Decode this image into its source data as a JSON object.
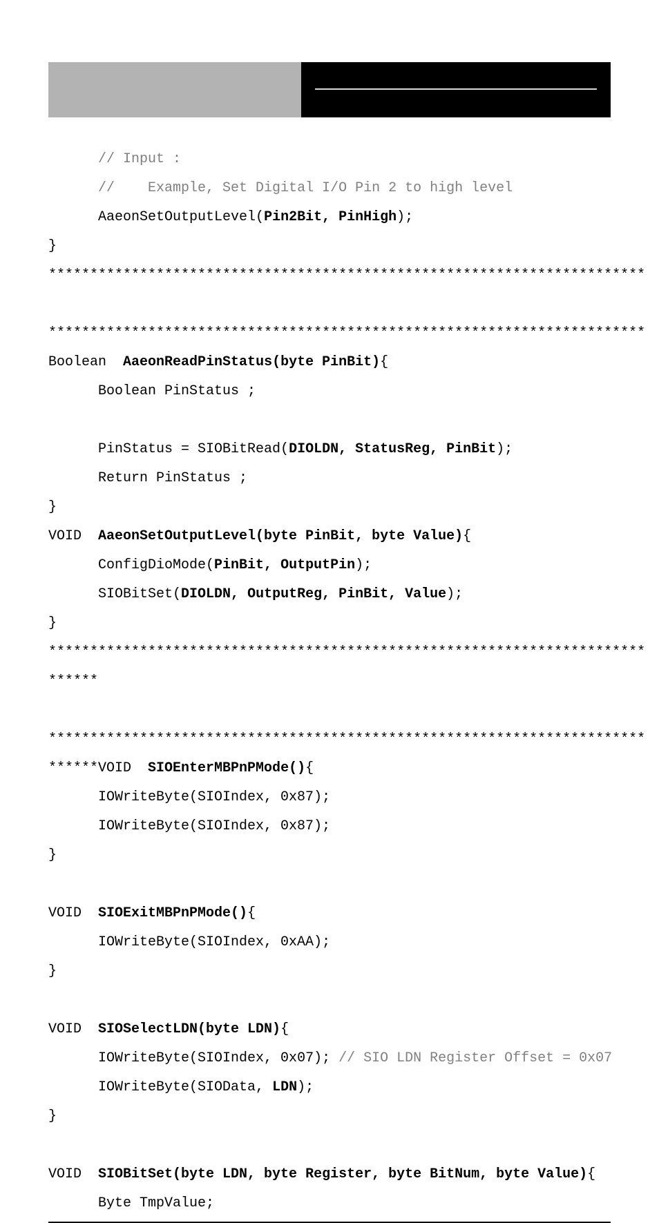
{
  "code": {
    "line1_indent": "      ",
    "line1_comment": "// Input :",
    "line2_indent": "      ",
    "line2_comment": "//    Example, Set Digital I/O Pin 2 to high level",
    "line3_indent": "      ",
    "line3_text": "AaeonSetOutputLevel(",
    "line3_bold": "Pin2Bit, PinHigh",
    "line3_end": ");",
    "line4": "}",
    "asterisks72": "************************************************************************",
    "line7_text": "Boolean  ",
    "line7_bold": "AaeonReadPinStatus(byte PinBit)",
    "line7_end": "{",
    "line8": "      Boolean PinStatus ;",
    "line9_indent": "      ",
    "line9_text": "PinStatus = SIOBitRead(",
    "line9_bold": "DIOLDN, StatusReg, PinBit",
    "line9_end": ");",
    "line10": "      Return PinStatus ;",
    "line11": "}",
    "line12_text": "VOID  ",
    "line12_bold": "AaeonSetOutputLevel(byte PinBit, byte Value)",
    "line12_end": "{",
    "line13_indent": "      ",
    "line13_text": "ConfigDioMode(",
    "line13_bold": "PinBit, OutputPin",
    "line13_end": ");",
    "line14_indent": "      ",
    "line14_text": "SIOBitSet(",
    "line14_bold": "DIOLDN, OutputReg, PinBit, Value",
    "line14_end": ");",
    "line15": "}",
    "asterisks6": "******",
    "line18_prefix": "******VOID  ",
    "line18_bold": "SIOEnterMBPnPMode()",
    "line18_end": "{",
    "line19": "      IOWriteByte(SIOIndex, 0x87);",
    "line20": "      IOWriteByte(SIOIndex, 0x87);",
    "line21": "}",
    "line22_text": "VOID  ",
    "line22_bold": "SIOExitMBPnPMode()",
    "line22_end": "{",
    "line23": "      IOWriteByte(SIOIndex, 0xAA);",
    "line24": "}",
    "line25_text": "VOID  ",
    "line25_bold": "SIOSelectLDN(byte LDN)",
    "line25_end": "{",
    "line26_indent": "      ",
    "line26_text": "IOWriteByte(SIOIndex, 0x07); ",
    "line26_comment": "// SIO LDN Register Offset = 0x07",
    "line27_indent": "      ",
    "line27_text1": "IOWriteByte(SIOData, ",
    "line27_bold": "LDN",
    "line27_end": ");",
    "line28": "}",
    "line29_text": "VOID  ",
    "line29_bold": "SIOBitSet(byte LDN, byte Register, byte BitNum, byte Value)",
    "line29_end": "{",
    "line30": "      Byte TmpValue;"
  },
  "colors": {
    "header_left_bg": "#b3b3b3",
    "header_right_bg": "#000000",
    "header_divider": "#d9d9d9",
    "text": "#000000",
    "comment": "#808080",
    "background": "#ffffff"
  },
  "typography": {
    "font_family": "Courier New, monospace",
    "font_size": 20,
    "line_height": 42
  }
}
